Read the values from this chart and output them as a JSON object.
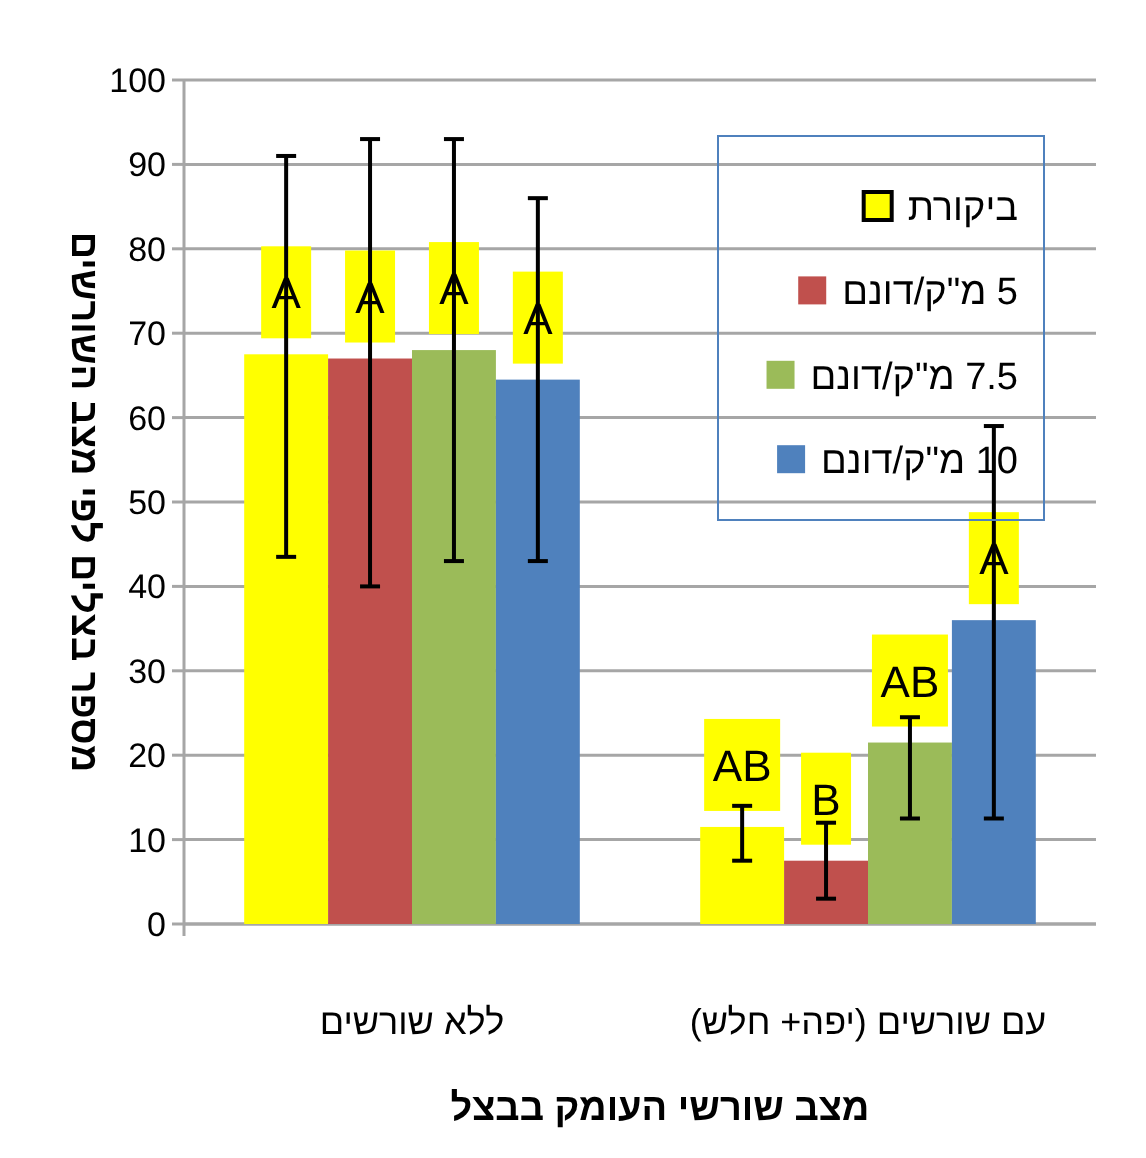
{
  "chart_data": {
    "type": "bar",
    "xlabel": "מצב שורשי העומק בבצל",
    "ylabel": "מספר בצלים לפי מצב השורשים",
    "categories": [
      "ללא שורשים",
      "עם שורשים (יפה+ חלש)"
    ],
    "series": [
      {
        "name": "ביקורת",
        "color": "#ffff00",
        "values": [
          67.5,
          11.5
        ],
        "errors": [
          [
            43.5,
            91
          ],
          [
            7.5,
            14
          ]
        ],
        "value_labels": [
          "A",
          "AB"
        ]
      },
      {
        "name": "5 מ\"ק/דונם",
        "color": "#c0504d",
        "values": [
          67,
          7.5
        ],
        "errors": [
          [
            40,
            93
          ],
          [
            3,
            12
          ]
        ],
        "value_labels": [
          "A",
          "B"
        ]
      },
      {
        "name": "7.5 מ\"ק/דונם",
        "color": "#9bbb59",
        "values": [
          68,
          21.5
        ],
        "errors": [
          [
            43,
            93
          ],
          [
            12.5,
            24.5
          ]
        ],
        "value_labels": [
          "A",
          "AB"
        ]
      },
      {
        "name": "10 מ\"ק/דונם",
        "color": "#4f81bd",
        "values": [
          64.5,
          36
        ],
        "errors": [
          [
            43,
            86
          ],
          [
            12.5,
            59
          ]
        ],
        "value_labels": [
          "A",
          "A"
        ]
      }
    ],
    "ylim": [
      0,
      100
    ],
    "yticks": [
      0,
      10,
      20,
      30,
      40,
      50,
      60,
      70,
      80,
      90,
      100
    ],
    "grid": "y",
    "legend": "top right"
  }
}
